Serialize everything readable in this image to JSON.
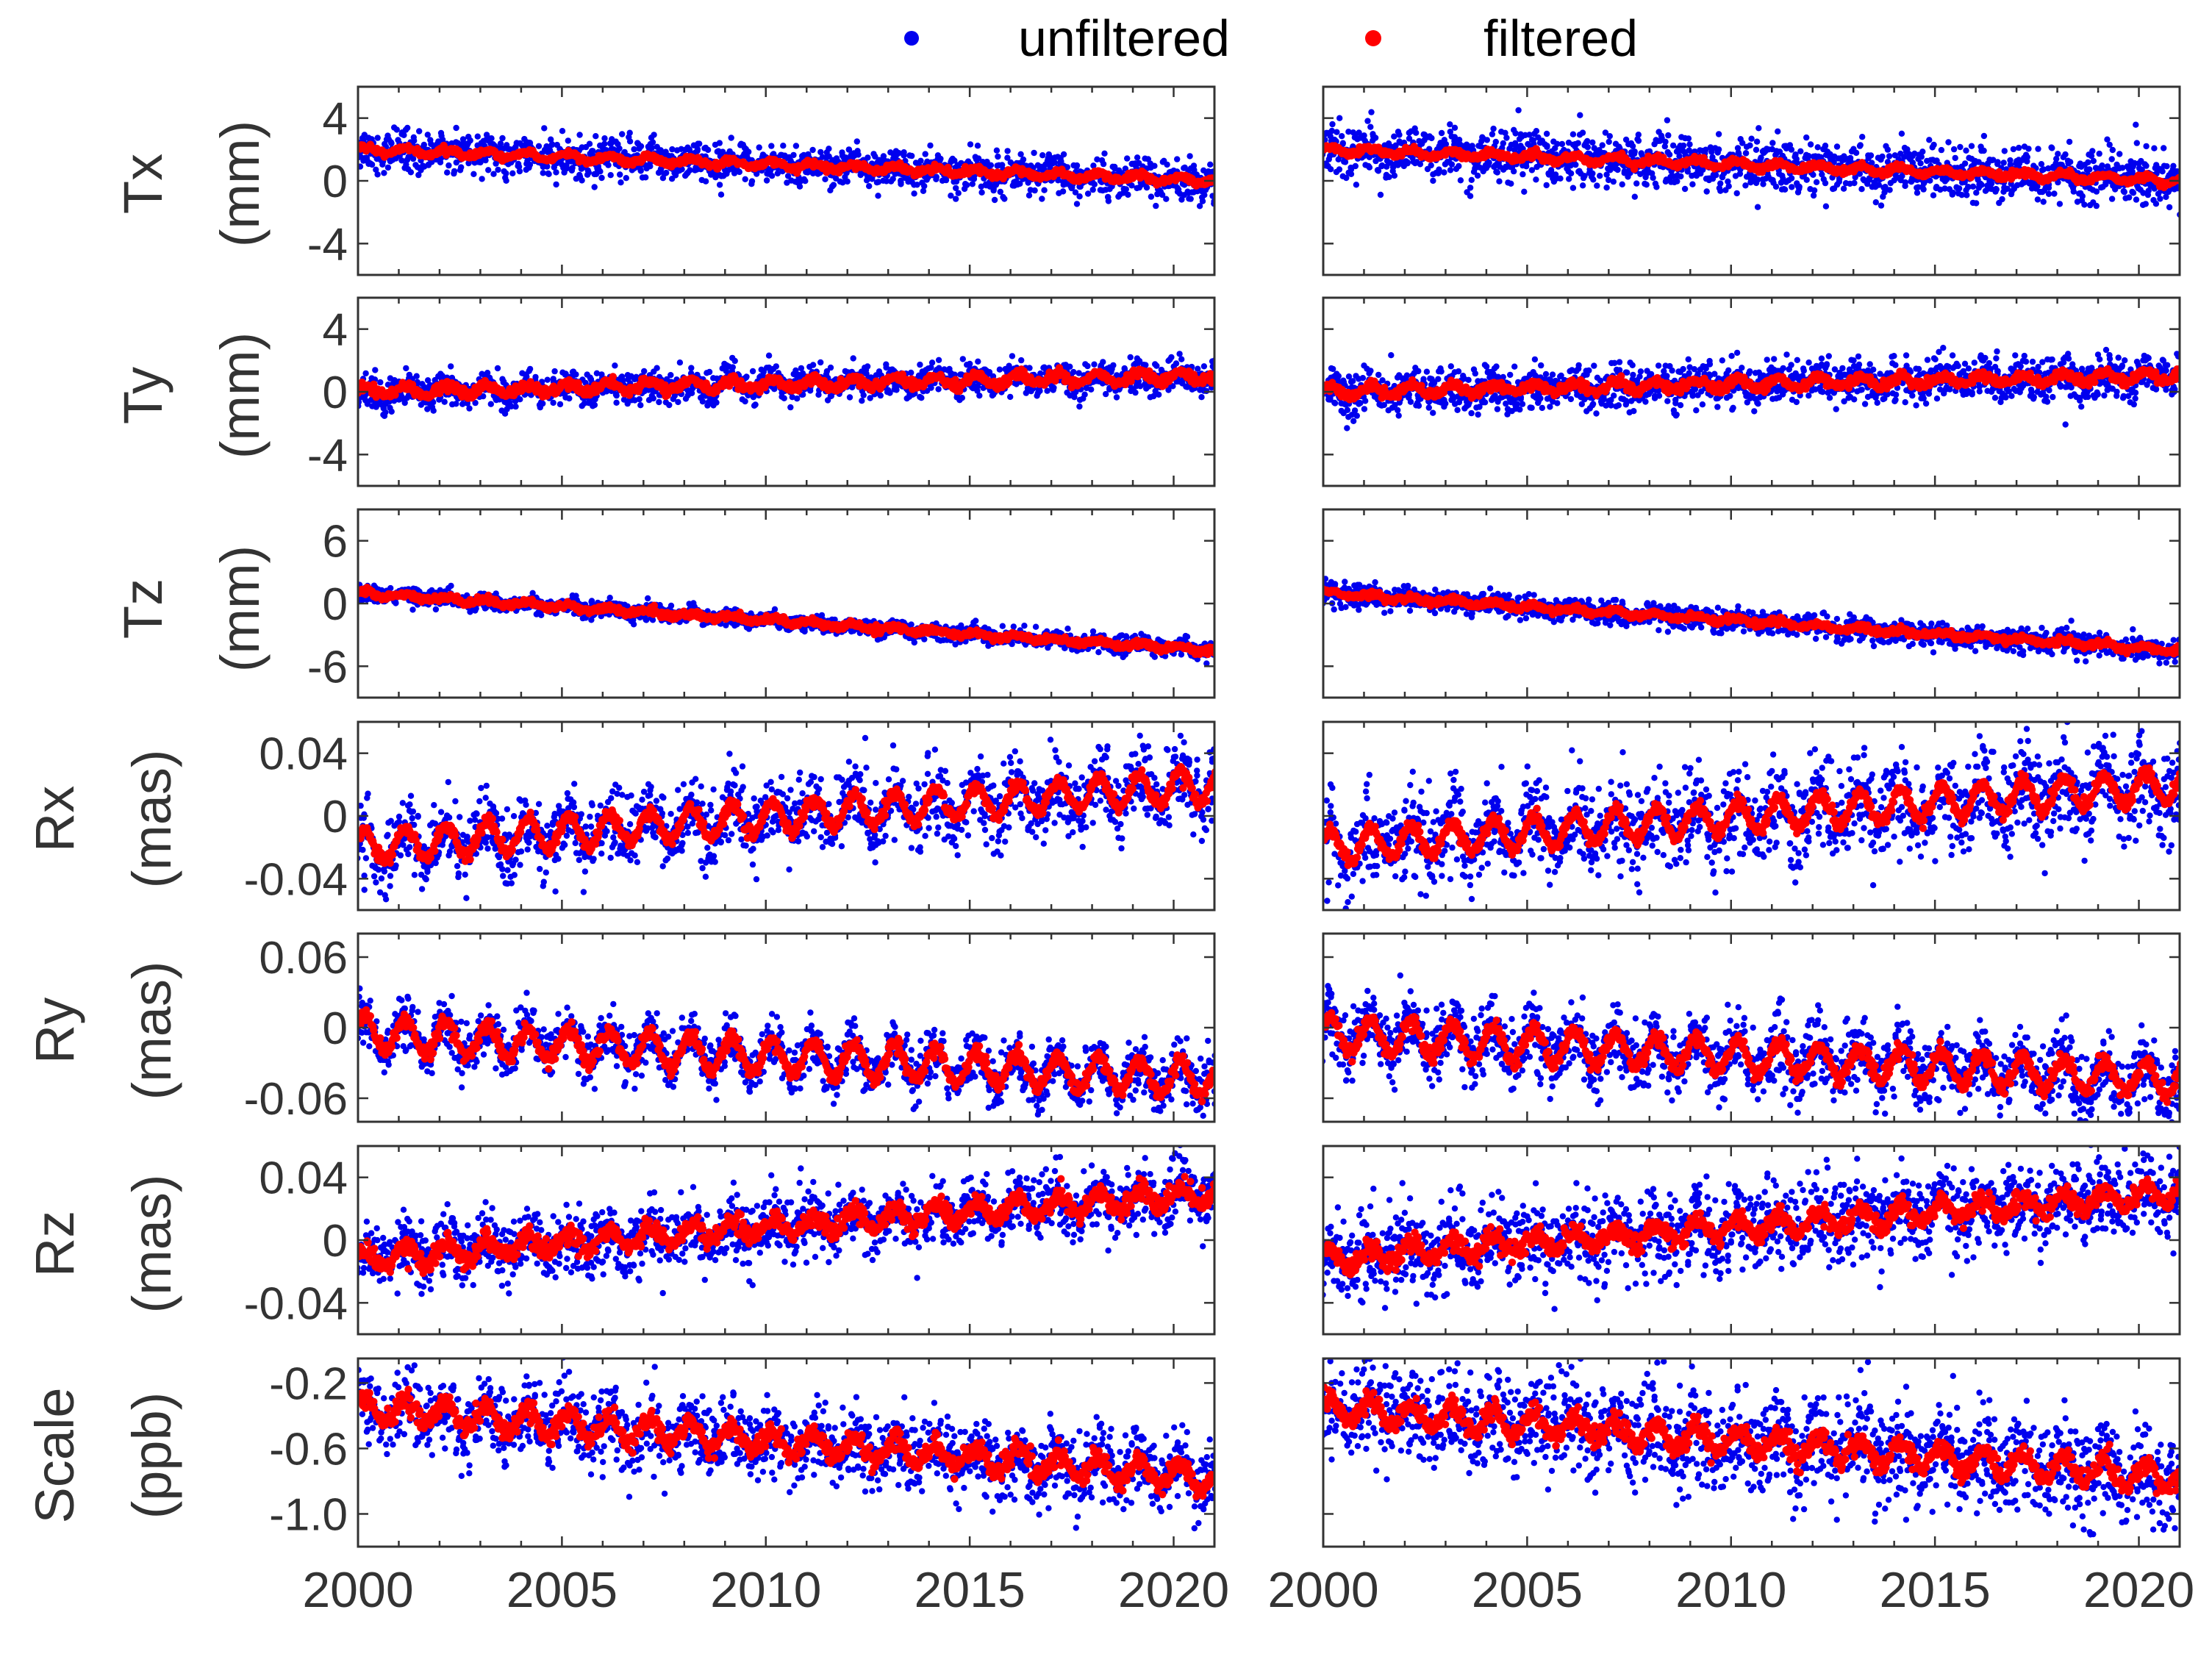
{
  "legend": {
    "unfiltered": "unfiltered",
    "filtered": "filtered"
  },
  "colors": {
    "unfiltered": "#0000ee",
    "filtered": "#ff0000",
    "axis": "#333333"
  },
  "chart_data": {
    "type": "scatter",
    "x_range": [
      2000,
      2021
    ],
    "x_ticks": [
      2000,
      2005,
      2010,
      2015,
      2020
    ],
    "x_tick_labels": [
      "2000",
      "2005",
      "2010",
      "2015",
      "2020"
    ],
    "columns": 2,
    "rows": [
      {
        "param": "Tx",
        "unit": "(mm)",
        "ylim": [
          -6,
          6
        ],
        "yticks": [
          4,
          0,
          -4
        ],
        "ytick_labels": [
          "4",
          "0",
          "-4"
        ],
        "trend": [
          2.0,
          0.0
        ],
        "seasonal_amp": 0.2,
        "noise_unfiltered": 0.6,
        "noise_filtered": 0.1
      },
      {
        "param": "Ty",
        "unit": "(mm)",
        "ylim": [
          -6,
          6
        ],
        "yticks": [
          4,
          0,
          -4
        ],
        "ytick_labels": [
          "4",
          "0",
          "-4"
        ],
        "trend": [
          0.0,
          1.0
        ],
        "seasonal_amp": 0.3,
        "noise_unfiltered": 0.5,
        "noise_filtered": 0.15
      },
      {
        "param": "Tz",
        "unit": "(mm)",
        "ylim": [
          -9,
          9
        ],
        "yticks": [
          6,
          0,
          -6
        ],
        "ytick_labels": [
          "6",
          "0",
          "-6"
        ],
        "trend": [
          1.0,
          -4.5
        ],
        "seasonal_amp": 0.2,
        "noise_unfiltered": 0.4,
        "noise_filtered": 0.15
      },
      {
        "param": "Rx",
        "unit": "(mas)",
        "ylim": [
          -0.06,
          0.06
        ],
        "yticks": [
          0.04,
          0,
          -0.04
        ],
        "ytick_labels": [
          "0.04",
          "0",
          "-0.04"
        ],
        "trend": [
          -0.02,
          0.02
        ],
        "seasonal_amp": 0.01,
        "noise_unfiltered": 0.011,
        "noise_filtered": 0.002
      },
      {
        "param": "Ry",
        "unit": "(mas)",
        "ylim": [
          -0.08,
          0.08
        ],
        "yticks": [
          0.06,
          0,
          -0.06
        ],
        "ytick_labels": [
          "0.06",
          "0",
          "-0.06"
        ],
        "trend": [
          -0.005,
          -0.045
        ],
        "seasonal_amp": 0.014,
        "noise_unfiltered": 0.011,
        "noise_filtered": 0.003
      },
      {
        "param": "Rz",
        "unit": "(mas)",
        "ylim": [
          -0.06,
          0.06
        ],
        "yticks": [
          0.04,
          0,
          -0.04
        ],
        "ytick_labels": [
          "0.04",
          "0",
          "-0.04"
        ],
        "trend": [
          -0.012,
          0.03
        ],
        "seasonal_amp": 0.006,
        "noise_unfiltered": 0.01,
        "noise_filtered": 0.003
      },
      {
        "param": "Scale",
        "unit": "(ppb)",
        "ylim": [
          -1.2,
          -0.05
        ],
        "yticks": [
          -0.2,
          -0.6,
          -1.0
        ],
        "ytick_labels": [
          "-0.2",
          "-0.6",
          "-1.0"
        ],
        "trend": [
          -0.35,
          -0.78
        ],
        "seasonal_amp": 0.07,
        "noise_unfiltered": 0.11,
        "noise_filtered": 0.03
      }
    ]
  }
}
